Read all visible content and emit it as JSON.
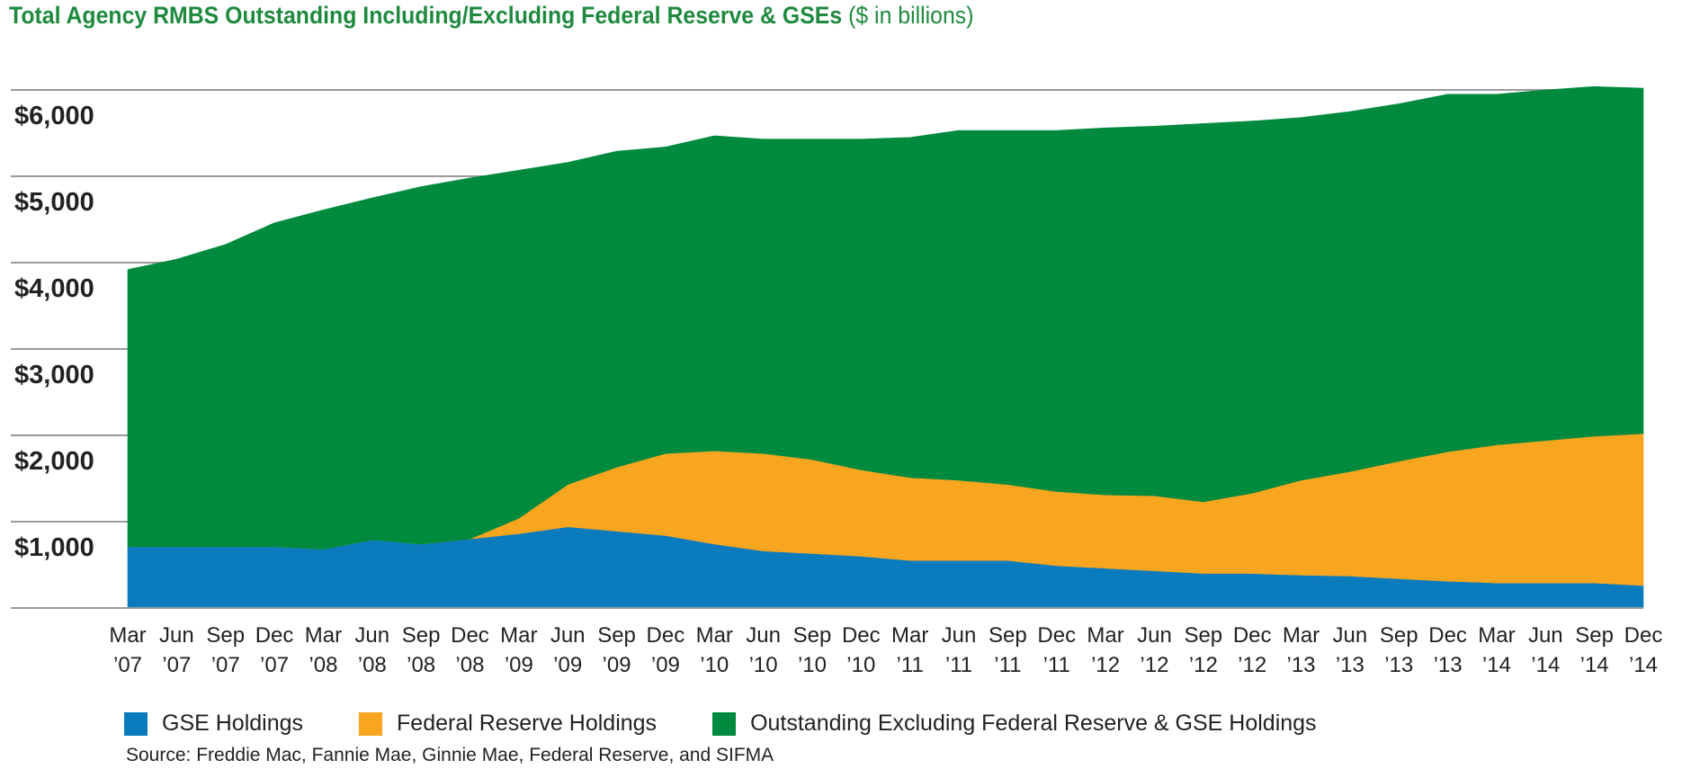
{
  "header": {
    "title": "Total Agency RMBS Outstanding Including/Excluding Federal Reserve & GSEs",
    "unit": "($ in billions)"
  },
  "source": "Source: Freddie Mac, Fannie Mae, Ginnie Mae, Federal Reserve, and SIFMA",
  "chart_data": {
    "type": "area",
    "stacked": true,
    "title": "Total Agency RMBS Outstanding Including/Excluding Federal Reserve & GSEs",
    "ylim": [
      0,
      6000
    ],
    "yticks": [
      {
        "value": 1000,
        "label": "$1,000"
      },
      {
        "value": 2000,
        "label": "$2,000"
      },
      {
        "value": 3000,
        "label": "$3,000"
      },
      {
        "value": 4000,
        "label": "$4,000"
      },
      {
        "value": 5000,
        "label": "$5,000"
      },
      {
        "value": 6000,
        "label": "$6,000"
      }
    ],
    "grid": true,
    "legend": "bottom",
    "categories": [
      [
        "Mar",
        "’07"
      ],
      [
        "Jun",
        "’07"
      ],
      [
        "Sep",
        "’07"
      ],
      [
        "Dec",
        "’07"
      ],
      [
        "Mar",
        "’08"
      ],
      [
        "Jun",
        "’08"
      ],
      [
        "Sep",
        "’08"
      ],
      [
        "Dec",
        "’08"
      ],
      [
        "Mar",
        "’09"
      ],
      [
        "Jun",
        "’09"
      ],
      [
        "Sep",
        "’09"
      ],
      [
        "Dec",
        "’09"
      ],
      [
        "Mar",
        "’10"
      ],
      [
        "Jun",
        "’10"
      ],
      [
        "Sep",
        "’10"
      ],
      [
        "Dec",
        "’10"
      ],
      [
        "Mar",
        "’11"
      ],
      [
        "Jun",
        "’11"
      ],
      [
        "Sep",
        "’11"
      ],
      [
        "Dec",
        "’11"
      ],
      [
        "Mar",
        "’12"
      ],
      [
        "Jun",
        "’12"
      ],
      [
        "Sep",
        "’12"
      ],
      [
        "Dec",
        "’12"
      ],
      [
        "Mar",
        "’13"
      ],
      [
        "Jun",
        "’13"
      ],
      [
        "Sep",
        "’13"
      ],
      [
        "Dec",
        "’13"
      ],
      [
        "Mar",
        "’14"
      ],
      [
        "Jun",
        "’14"
      ],
      [
        "Sep",
        "’14"
      ],
      [
        "Dec",
        "’14"
      ]
    ],
    "series": [
      {
        "name": "GSE Holdings",
        "color": "#0a7bbd",
        "values": [
          710,
          710,
          710,
          710,
          680,
          790,
          740,
          800,
          860,
          940,
          890,
          840,
          740,
          660,
          630,
          600,
          550,
          550,
          550,
          490,
          460,
          430,
          400,
          400,
          380,
          370,
          340,
          310,
          290,
          290,
          290,
          260
        ]
      },
      {
        "name": "Federal Reserve Holdings",
        "color": "#f8a51f",
        "values": [
          0,
          0,
          0,
          0,
          0,
          0,
          0,
          0,
          180,
          490,
          740,
          950,
          1080,
          1130,
          1090,
          1000,
          960,
          930,
          880,
          860,
          850,
          870,
          830,
          930,
          1100,
          1210,
          1360,
          1500,
          1600,
          1650,
          1700,
          1760
        ]
      },
      {
        "name": "Outstanding Excluding Federal Reserve & GSE Holdings",
        "color": "#008a3e",
        "values": [
          3210,
          3330,
          3500,
          3750,
          3930,
          3960,
          4140,
          4180,
          4030,
          3730,
          3660,
          3550,
          3650,
          3640,
          3710,
          3830,
          3940,
          4050,
          4100,
          4180,
          4250,
          4280,
          4380,
          4310,
          4200,
          4170,
          4140,
          4140,
          4060,
          4060,
          4050,
          4000
        ]
      }
    ]
  }
}
